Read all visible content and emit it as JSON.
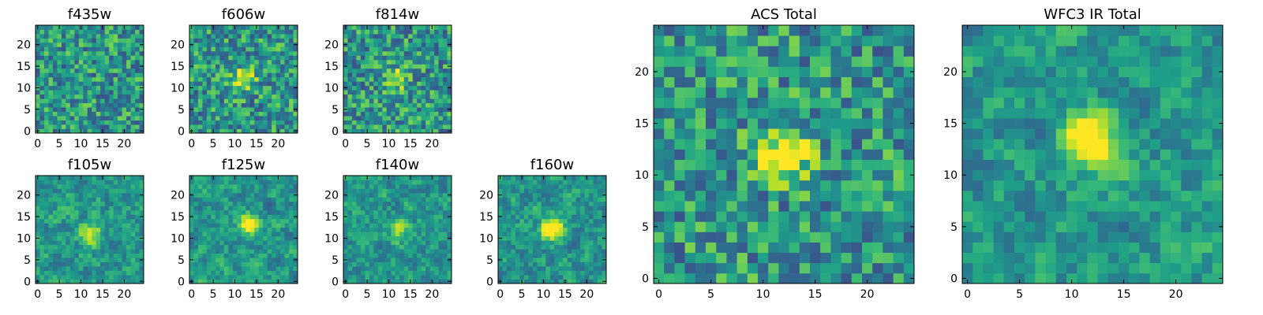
{
  "chart_data": [
    {
      "type": "heatmap",
      "title": "f435w",
      "grid": false,
      "colormap": "viridis",
      "shape": [
        25,
        25
      ],
      "xlim": [
        0,
        24
      ],
      "ylim": [
        0,
        24
      ],
      "x_ticks": [
        "0",
        "5",
        "10",
        "15",
        "20"
      ],
      "y_ticks": [
        "0",
        "5",
        "10",
        "15",
        "20"
      ],
      "source_feature": {
        "cx": 12,
        "cy": 12,
        "strength": 0.0
      }
    },
    {
      "type": "heatmap",
      "title": "f606w",
      "grid": false,
      "colormap": "viridis",
      "shape": [
        25,
        25
      ],
      "xlim": [
        0,
        24
      ],
      "ylim": [
        0,
        24
      ],
      "x_ticks": [
        "0",
        "5",
        "10",
        "15",
        "20"
      ],
      "y_ticks": [
        "0",
        "5",
        "10",
        "15",
        "20"
      ],
      "source_feature": {
        "cx": 12,
        "cy": 12,
        "strength": 0.45
      }
    },
    {
      "type": "heatmap",
      "title": "f814w",
      "grid": false,
      "colormap": "viridis",
      "shape": [
        25,
        25
      ],
      "xlim": [
        0,
        24
      ],
      "ylim": [
        0,
        24
      ],
      "x_ticks": [
        "0",
        "5",
        "10",
        "15",
        "20"
      ],
      "y_ticks": [
        "0",
        "5",
        "10",
        "15",
        "20"
      ],
      "source_feature": {
        "cx": 12,
        "cy": 12,
        "strength": 0.4
      }
    },
    {
      "type": "heatmap",
      "title": "f105w",
      "grid": false,
      "colormap": "viridis",
      "shape": [
        25,
        25
      ],
      "xlim": [
        0,
        24
      ],
      "ylim": [
        0,
        24
      ],
      "x_ticks": [
        "0",
        "5",
        "10",
        "15",
        "20"
      ],
      "y_ticks": [
        "0",
        "5",
        "10",
        "15",
        "20"
      ],
      "source_feature": {
        "cx": 12,
        "cy": 11,
        "strength": 0.5
      }
    },
    {
      "type": "heatmap",
      "title": "f125w",
      "grid": false,
      "colormap": "viridis",
      "shape": [
        25,
        25
      ],
      "xlim": [
        0,
        24
      ],
      "ylim": [
        0,
        24
      ],
      "x_ticks": [
        "0",
        "5",
        "10",
        "15",
        "20"
      ],
      "y_ticks": [
        "0",
        "5",
        "10",
        "15",
        "20"
      ],
      "source_feature": {
        "cx": 13,
        "cy": 13,
        "strength": 0.5
      }
    },
    {
      "type": "heatmap",
      "title": "f140w",
      "grid": false,
      "colormap": "viridis",
      "shape": [
        25,
        25
      ],
      "xlim": [
        0,
        24
      ],
      "ylim": [
        0,
        24
      ],
      "x_ticks": [
        "0",
        "5",
        "10",
        "15",
        "20"
      ],
      "y_ticks": [
        "0",
        "5",
        "10",
        "15",
        "20"
      ],
      "source_feature": {
        "cx": 12,
        "cy": 12,
        "strength": 0.25
      }
    },
    {
      "type": "heatmap",
      "title": "f160w",
      "grid": false,
      "colormap": "viridis",
      "shape": [
        25,
        25
      ],
      "xlim": [
        0,
        24
      ],
      "ylim": [
        0,
        24
      ],
      "x_ticks": [
        "0",
        "5",
        "10",
        "15",
        "20"
      ],
      "y_ticks": [
        "0",
        "5",
        "10",
        "15",
        "20"
      ],
      "source_feature": {
        "cx": 12,
        "cy": 12,
        "strength": 0.7
      }
    },
    {
      "type": "heatmap",
      "title": "ACS Total",
      "grid": false,
      "colormap": "viridis",
      "shape": [
        25,
        25
      ],
      "xlim": [
        0,
        24
      ],
      "ylim": [
        0,
        24
      ],
      "x_ticks": [
        "0",
        "5",
        "10",
        "15",
        "20"
      ],
      "y_ticks": [
        "0",
        "5",
        "10",
        "15",
        "20"
      ],
      "source_feature": {
        "cx": 12,
        "cy": 12,
        "strength": 0.6
      }
    },
    {
      "type": "heatmap",
      "title": "WFC3 IR Total",
      "grid": false,
      "colormap": "viridis",
      "shape": [
        25,
        25
      ],
      "xlim": [
        0,
        24
      ],
      "ylim": [
        0,
        24
      ],
      "x_ticks": [
        "0",
        "5",
        "10",
        "15",
        "20"
      ],
      "y_ticks": [
        "0",
        "5",
        "10",
        "15",
        "20"
      ],
      "source_feature": {
        "cx": 12,
        "cy": 13,
        "strength": 0.7
      }
    }
  ]
}
